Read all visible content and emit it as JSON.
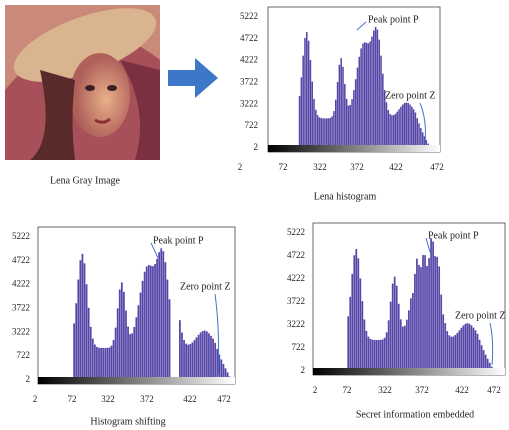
{
  "image": {
    "caption": "Lena Gray  Image"
  },
  "panels": [
    {
      "caption": "Lena histogram",
      "y_ticks": [
        "5222",
        "4722",
        "4222",
        "3722",
        "3222",
        "722",
        "2"
      ],
      "x_ticks": [
        "2",
        "72",
        "322",
        "372",
        "422",
        "472"
      ],
      "peak_label": "Peak point P",
      "zero_label": "Zero point Z"
    },
    {
      "caption": "Histogram shifting",
      "y_ticks": [
        "5222",
        "4722",
        "4222",
        "3722",
        "3222",
        "722",
        "2"
      ],
      "x_ticks": [
        "2",
        "72",
        "322",
        "372",
        "422",
        "472"
      ],
      "peak_label": "Peak point P",
      "zero_label": "Zero point Z"
    },
    {
      "caption": "Secret information embedded",
      "y_ticks": [
        "5222",
        "4722",
        "4222",
        "3722",
        "3222",
        "722",
        "2"
      ],
      "x_ticks": [
        "2",
        "72",
        "322",
        "372",
        "422",
        "472"
      ],
      "peak_label": "Peak point P",
      "zero_label": "Zero point Z"
    }
  ]
}
